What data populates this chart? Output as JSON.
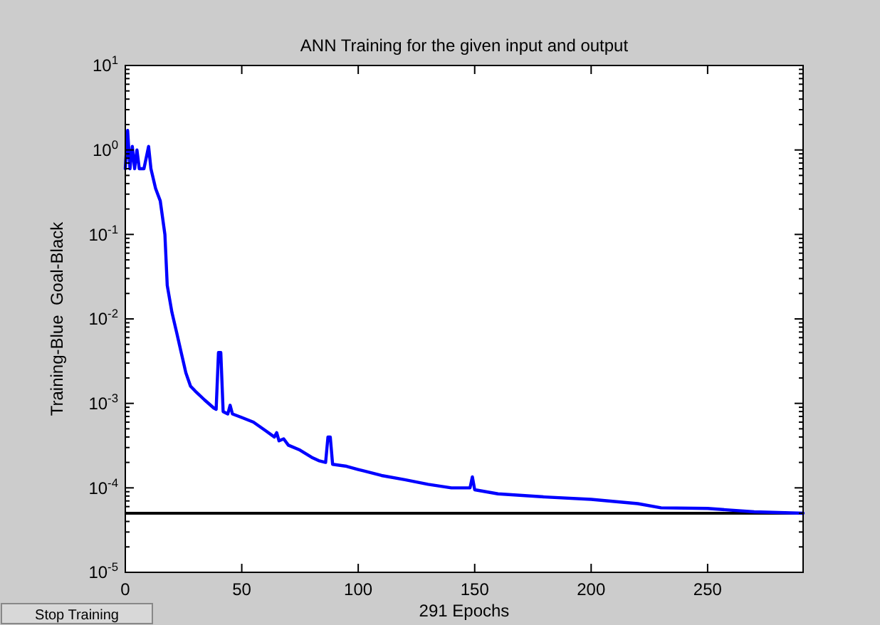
{
  "chart_data": {
    "type": "line",
    "title": "ANN Training for the given input and output",
    "xlabel": "291 Epochs",
    "ylabel": "Training-Blue  Goal-Black",
    "annotations": [
      "Stop Training"
    ],
    "log": true,
    "grid": false,
    "xlim": [
      0,
      291
    ],
    "xticks": [
      0,
      50,
      100,
      150,
      200,
      250
    ],
    "ylim": [
      1e-05,
      10
    ],
    "yticks": [
      {
        "value": 1e-05,
        "label": "10$^{-5}$"
      },
      {
        "value": 0.0001,
        "label": "10$^{-4}$"
      },
      {
        "value": 0.001,
        "label": "10$^{-3}$"
      },
      {
        "value": 0.01,
        "label": "10$^{-2}$"
      },
      {
        "value": 0.1,
        "label": "10$^{-1}$"
      },
      {
        "value": 1,
        "label": "10$^{0}$"
      },
      {
        "value": 10,
        "label": "10$^{1}$"
      }
    ],
    "ref_lines": [
      {
        "axis": "y",
        "value": 5e-05,
        "color": "#000000"
      }
    ],
    "series": [
      {
        "color": "#0000ff",
        "x": [
          0,
          1,
          2,
          3,
          4,
          5,
          6,
          8,
          10,
          11,
          13,
          15,
          17,
          18,
          20,
          22,
          24,
          26,
          28,
          30,
          34,
          38,
          39,
          40,
          41,
          42,
          44,
          45,
          46,
          50,
          55,
          60,
          64,
          65,
          66,
          68,
          70,
          75,
          80,
          83,
          86,
          87,
          88,
          89,
          95,
          100,
          110,
          120,
          130,
          140,
          148,
          149,
          150,
          160,
          180,
          200,
          220,
          230,
          250,
          270,
          291
        ],
        "values": [
          0.6,
          1.7,
          0.6,
          1.1,
          0.6,
          1.0,
          0.6,
          0.6,
          1.1,
          0.6,
          0.35,
          0.25,
          0.1,
          0.025,
          0.012,
          0.007,
          0.004,
          0.0023,
          0.0016,
          0.0014,
          0.0011,
          0.00088,
          0.00085,
          0.004,
          0.004,
          0.0008,
          0.00075,
          0.00095,
          0.00075,
          0.00068,
          0.0006,
          0.00048,
          0.0004,
          0.00045,
          0.00036,
          0.00038,
          0.00032,
          0.00028,
          0.00023,
          0.00021,
          0.0002,
          0.0004,
          0.0004,
          0.00019,
          0.00018,
          0.000165,
          0.00014,
          0.000125,
          0.00011,
          0.0001,
          0.0001,
          0.000135,
          9.5e-05,
          8.5e-05,
          7.8e-05,
          7.3e-05,
          6.5e-05,
          5.8e-05,
          5.7e-05,
          5.2e-05,
          5e-05
        ]
      }
    ]
  }
}
